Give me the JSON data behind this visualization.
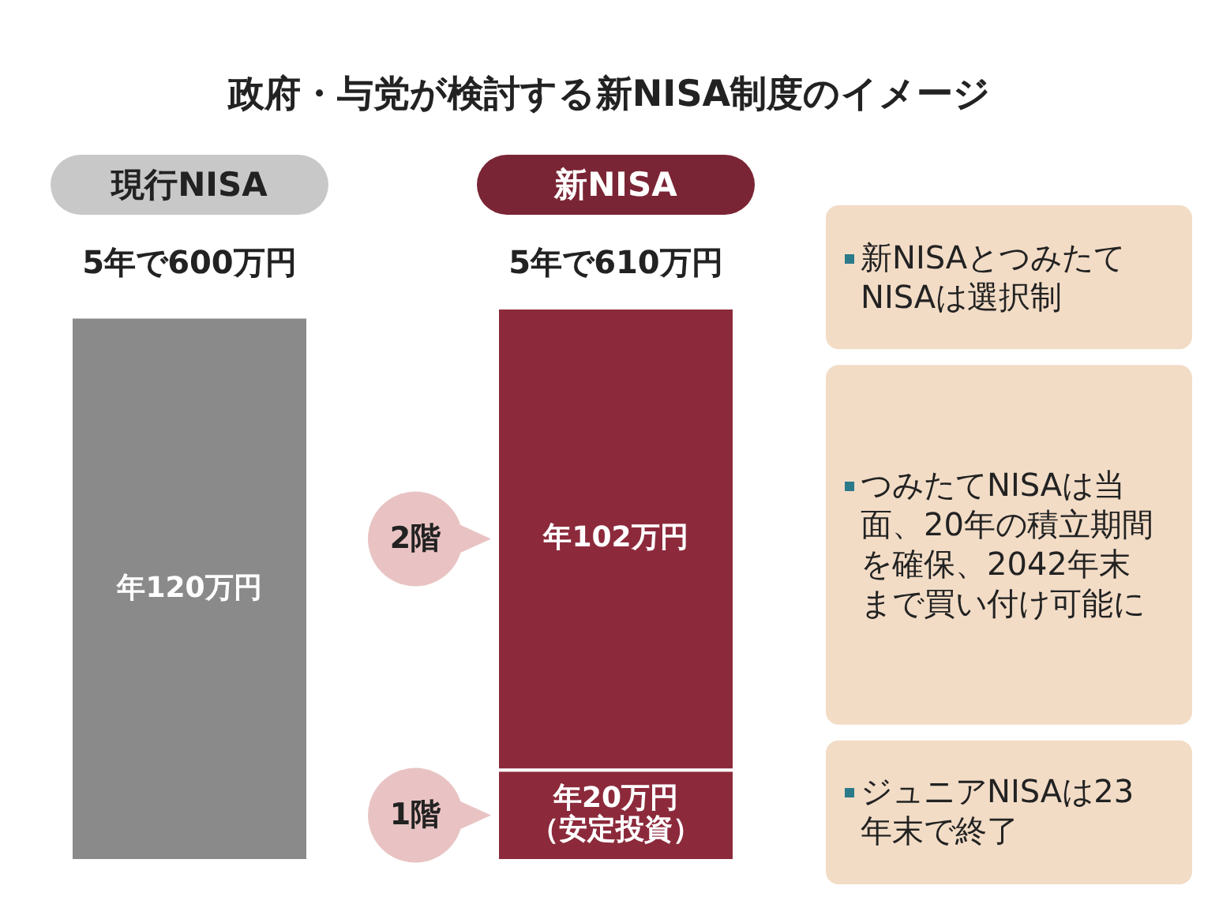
{
  "chart_data": {
    "type": "bar",
    "stacked": true,
    "title": "政府・与党が検討する新NISA制度のイメージ",
    "categories": [
      "現行NISA",
      "新NISA"
    ],
    "series": [
      {
        "color": "#8a8a8a",
        "values": [
          120,
          null
        ],
        "value_labels": [
          "年120万円",
          null
        ]
      },
      {
        "name": "1階",
        "color": "#8c2a3c",
        "values": [
          null,
          20
        ],
        "value_labels": [
          null,
          "年20万円（安定投資）"
        ]
      },
      {
        "name": "2階",
        "color": "#8c2a3c",
        "values": [
          null,
          102
        ],
        "value_labels": [
          null,
          "年102万円"
        ]
      }
    ],
    "totals": [
      "5年で600万円",
      "5年で610万円"
    ],
    "annotations": [
      "新NISAとつみたてNISAは選択制",
      "つみたてNISAは当面、20年の積立期間を確保、2042年末まで買い付け可能に",
      "ジュニアNISAは23年末で終了"
    ]
  }
}
